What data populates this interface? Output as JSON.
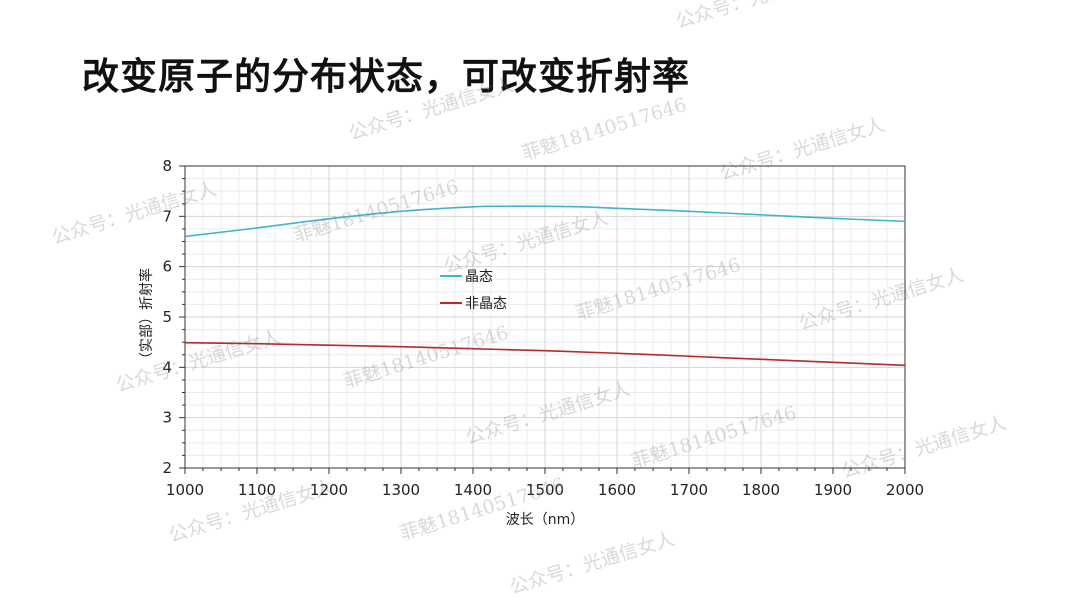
{
  "slide": {
    "title": "改变原子的分布状态，可改变折射率"
  },
  "watermarks": {
    "account": "公众号：光通信女人",
    "contact": "菲魅18140517646"
  },
  "chart_data": {
    "type": "line",
    "title": "",
    "xlabel": "波长（nm）",
    "ylabel": "（实部）折射率",
    "xlim": [
      1000,
      2000
    ],
    "ylim": [
      2,
      8
    ],
    "xticks": [
      1000,
      1100,
      1200,
      1300,
      1400,
      1500,
      1600,
      1700,
      1800,
      1900,
      2000
    ],
    "yticks": [
      2,
      3,
      4,
      5,
      6,
      7,
      8
    ],
    "grid": true,
    "legend_position": "center-left",
    "series": [
      {
        "name": "晶态",
        "color": "#3fb5cc",
        "x": [
          1000,
          1100,
          1200,
          1300,
          1400,
          1450,
          1500,
          1550,
          1600,
          1700,
          1800,
          1900,
          2000
        ],
        "y": [
          6.6,
          6.77,
          6.95,
          7.1,
          7.19,
          7.2,
          7.2,
          7.19,
          7.16,
          7.1,
          7.03,
          6.96,
          6.9
        ]
      },
      {
        "name": "非晶态",
        "color": "#b52a2a",
        "x": [
          1000,
          1100,
          1200,
          1300,
          1400,
          1500,
          1600,
          1700,
          1800,
          1900,
          2000
        ],
        "y": [
          4.49,
          4.47,
          4.44,
          4.41,
          4.37,
          4.33,
          4.28,
          4.22,
          4.16,
          4.1,
          4.04
        ]
      }
    ]
  }
}
